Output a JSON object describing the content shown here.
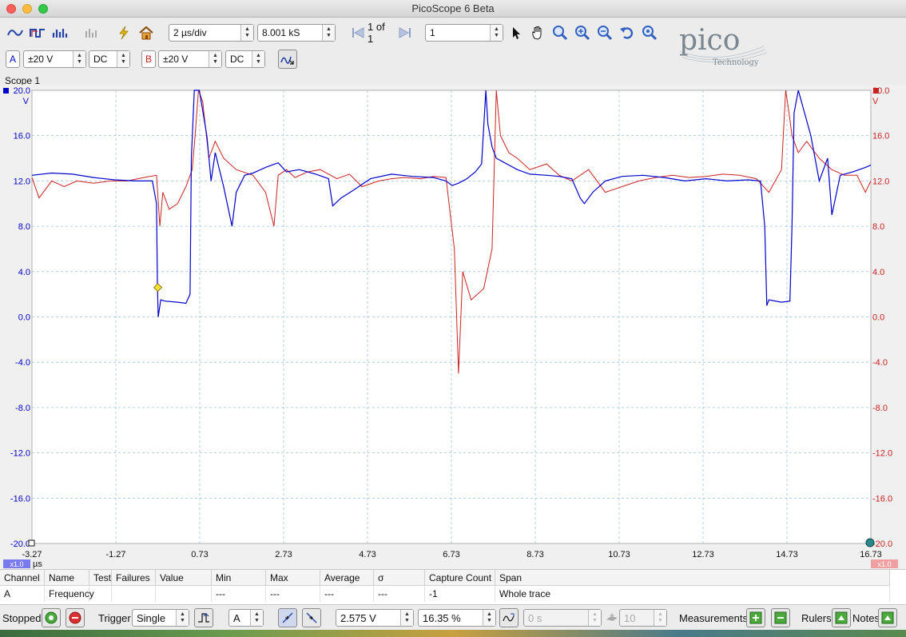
{
  "window": {
    "title": "PicoScope 6 Beta"
  },
  "toolbar": {
    "timebase": "2 µs/div",
    "samples": "8.001 kS",
    "buffer": "1 of 1",
    "buffer_input": "1"
  },
  "channels": {
    "a": {
      "label": "A",
      "range": "±20 V",
      "coupling": "DC",
      "color": "#0000cc"
    },
    "b": {
      "label": "B",
      "range": "±20 V",
      "coupling": "DC",
      "color": "#cc2222"
    }
  },
  "logo": {
    "text": "pico",
    "sub": "Technology"
  },
  "scope": {
    "tab_label": "Scope 1",
    "left_unit": "V",
    "right_unit": "V",
    "x_unit": "µs",
    "scale_a": "x1.0",
    "scale_b": "x1.0"
  },
  "chart_data": {
    "type": "line",
    "xlabel": "µs",
    "ylabel": "V",
    "xlim": [
      -3.27,
      16.73
    ],
    "ylim": [
      -20,
      20
    ],
    "x_ticks": [
      "-3.27",
      "-1.27",
      "0.73",
      "2.73",
      "4.73",
      "6.73",
      "8.73",
      "10.73",
      "12.73",
      "14.73",
      "16.73"
    ],
    "y_ticks_left": [
      "20.0",
      "16.0",
      "12.0",
      "8.0",
      "4.0",
      "0.0",
      "-4.0",
      "-8.0",
      "-12.0",
      "-16.0",
      "-20.0"
    ],
    "y_ticks_right": [
      "20.0",
      "16.0",
      "12.0",
      "8.0",
      "4.0",
      "0.0",
      "-4.0",
      "-8.0",
      "-12.0",
      "-16.0",
      "-20.0"
    ],
    "grid": true,
    "trigger_marker": {
      "x": -0.27,
      "y": 2.6
    },
    "series": [
      {
        "channel": "A",
        "color": "#0000cc",
        "x": [
          -3.27,
          -2.8,
          -2.3,
          -1.8,
          -1.3,
          -0.8,
          -0.4,
          -0.3,
          -0.28,
          -0.26,
          -0.2,
          -0.1,
          0.2,
          0.4,
          0.5,
          0.53,
          0.6,
          0.67,
          0.72,
          0.9,
          1.0,
          1.1,
          1.3,
          1.5,
          1.6,
          1.8,
          2.0,
          2.3,
          2.6,
          2.8,
          3.1,
          3.5,
          3.8,
          3.9,
          4.1,
          4.4,
          4.8,
          5.3,
          5.8,
          6.3,
          6.6,
          6.75,
          6.9,
          7.1,
          7.3,
          7.45,
          7.55,
          7.6,
          7.7,
          7.8,
          8.0,
          8.3,
          8.6,
          9.0,
          9.3,
          9.6,
          9.8,
          9.9,
          10.1,
          10.4,
          10.8,
          11.3,
          11.8,
          12.3,
          12.8,
          13.3,
          13.8,
          14.1,
          14.2,
          14.25,
          14.3,
          14.6,
          14.8,
          14.85,
          14.9,
          15.0,
          15.3,
          15.5,
          15.7,
          15.8,
          16.0,
          16.3,
          16.6,
          16.73
        ],
        "y": [
          12.5,
          12.7,
          12.6,
          12.3,
          12.1,
          12.0,
          12.0,
          10.0,
          3.0,
          0.0,
          1.5,
          1.4,
          1.3,
          1.2,
          2.0,
          14.0,
          20.0,
          20.0,
          20.0,
          16.0,
          12.0,
          14.5,
          11.5,
          8.0,
          11.0,
          12.5,
          12.7,
          13.2,
          13.6,
          12.8,
          13.0,
          12.6,
          12.2,
          9.8,
          10.5,
          11.2,
          12.2,
          12.6,
          12.4,
          12.3,
          12.0,
          11.6,
          11.8,
          12.2,
          12.8,
          13.5,
          20.0,
          17.0,
          15.0,
          14.0,
          13.6,
          13.0,
          12.6,
          12.5,
          12.4,
          12.2,
          10.5,
          10.0,
          11.0,
          12.0,
          12.4,
          12.5,
          12.3,
          12.0,
          12.2,
          12.0,
          12.1,
          12.0,
          8.0,
          1.0,
          1.5,
          1.3,
          1.4,
          8.0,
          18.0,
          20.0,
          16.0,
          12.0,
          14.0,
          9.0,
          12.5,
          12.8,
          13.2,
          13.4
        ]
      },
      {
        "channel": "B",
        "color": "#cc2222",
        "x": [
          -3.27,
          -3.1,
          -2.8,
          -2.5,
          -2.2,
          -1.8,
          -1.4,
          -1.0,
          -0.6,
          -0.3,
          -0.22,
          -0.15,
          0.0,
          0.2,
          0.4,
          0.55,
          0.62,
          0.7,
          0.8,
          0.95,
          1.1,
          1.3,
          1.6,
          2.0,
          2.3,
          2.5,
          2.6,
          2.8,
          3.0,
          3.3,
          3.6,
          4.0,
          4.3,
          4.6,
          5.0,
          5.3,
          5.6,
          6.0,
          6.3,
          6.6,
          6.8,
          6.9,
          7.0,
          7.2,
          7.5,
          7.7,
          7.8,
          7.9,
          8.1,
          8.3,
          8.6,
          9.0,
          9.3,
          9.6,
          10.0,
          10.4,
          10.8,
          11.2,
          11.6,
          12.0,
          12.4,
          12.8,
          13.2,
          13.6,
          14.0,
          14.3,
          14.6,
          14.7,
          14.78,
          14.85,
          15.0,
          15.2,
          15.5,
          15.8,
          16.1,
          16.4,
          16.6,
          16.73
        ],
        "y": [
          12.3,
          10.5,
          12.0,
          11.5,
          12.0,
          11.8,
          12.0,
          12.0,
          12.3,
          12.5,
          8.0,
          11.0,
          9.5,
          10.0,
          11.5,
          13.0,
          16.0,
          20.0,
          19.0,
          14.0,
          15.5,
          14.0,
          13.0,
          12.5,
          11.0,
          8.0,
          12.5,
          13.0,
          12.3,
          12.8,
          13.0,
          12.2,
          12.6,
          11.5,
          12.0,
          12.2,
          12.3,
          12.2,
          12.4,
          12.3,
          6.0,
          -5.0,
          4.0,
          1.5,
          2.5,
          6.0,
          20.0,
          16.0,
          14.5,
          14.0,
          13.0,
          13.5,
          12.5,
          12.0,
          13.0,
          11.0,
          11.5,
          12.0,
          12.3,
          12.5,
          12.3,
          12.4,
          12.6,
          12.5,
          12.2,
          11.0,
          13.0,
          20.0,
          18.0,
          16.0,
          14.5,
          15.5,
          14.0,
          13.0,
          12.5,
          12.5,
          11.0,
          12.0
        ]
      }
    ]
  },
  "measurements": {
    "headers": [
      "Channel",
      "Name",
      "Test",
      "Failures",
      "Value",
      "Min",
      "Max",
      "Average",
      "σ",
      "Capture Count",
      "Span"
    ],
    "rows": [
      [
        "A",
        "Frequency",
        "",
        "",
        "",
        "---",
        "---",
        "---",
        "---",
        "-1",
        "Whole trace"
      ]
    ]
  },
  "status": {
    "state": "Stopped",
    "trigger_label": "Trigger",
    "trigger_mode": "Single",
    "trigger_channel": "A",
    "trigger_level": "2.575 V",
    "pre_trigger": "16.35 %",
    "delay": "0 s",
    "count": "10",
    "measurements_label": "Measurements",
    "rulers_label": "Rulers",
    "notes_label": "Notes"
  }
}
